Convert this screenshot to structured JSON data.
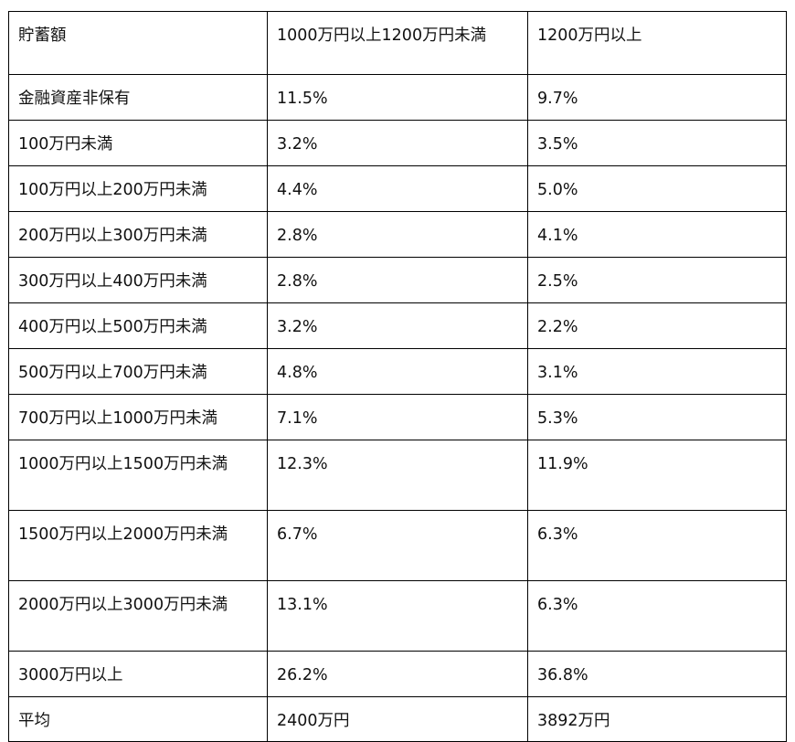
{
  "table": {
    "headers": [
      "貯蓄額",
      "1000万円以上1200万円未満",
      "1200万円以上"
    ],
    "rows": [
      [
        "金融資産非保有",
        "11.5%",
        "9.7%"
      ],
      [
        "100万円未満",
        "3.2%",
        "3.5%"
      ],
      [
        "100万円以上200万円未満",
        "4.4%",
        "5.0%"
      ],
      [
        "200万円以上300万円未満",
        "2.8%",
        "4.1%"
      ],
      [
        "300万円以上400万円未満",
        "2.8%",
        "2.5%"
      ],
      [
        "400万円以上500万円未満",
        "3.2%",
        "2.2%"
      ],
      [
        "500万円以上700万円未満",
        "4.8%",
        "3.1%"
      ],
      [
        "700万円以上1000万円未満",
        "7.1%",
        "5.3%"
      ],
      [
        "1000万円以上1500万円未満",
        "12.3%",
        "11.9%"
      ],
      [
        "1500万円以上2000万円未満",
        "6.7%",
        "6.3%"
      ],
      [
        "2000万円以上3000万円未満",
        "13.1%",
        "6.3%"
      ],
      [
        "3000万円以上",
        "26.2%",
        "36.8%"
      ],
      [
        "平均",
        "2400万円",
        "3892万円"
      ]
    ]
  }
}
